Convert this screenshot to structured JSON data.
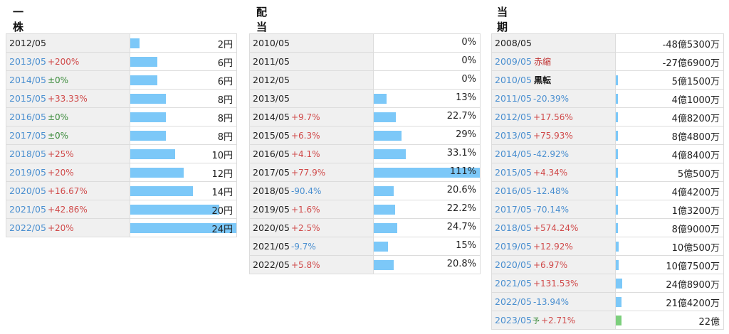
{
  "panels": [
    {
      "title": "一株配当",
      "rows": [
        {
          "year": "2012/05",
          "change": "",
          "dir": "",
          "link": false,
          "value": "2円",
          "bar": 2
        },
        {
          "year": "2013/05",
          "change": "+200%",
          "dir": "up",
          "link": true,
          "value": "6円",
          "bar": 6
        },
        {
          "year": "2014/05",
          "change": "±0%",
          "dir": "flat",
          "link": true,
          "value": "6円",
          "bar": 6
        },
        {
          "year": "2015/05",
          "change": "+33.33%",
          "dir": "up",
          "link": true,
          "value": "8円",
          "bar": 8
        },
        {
          "year": "2016/05",
          "change": "±0%",
          "dir": "flat",
          "link": true,
          "value": "8円",
          "bar": 8
        },
        {
          "year": "2017/05",
          "change": "±0%",
          "dir": "flat",
          "link": true,
          "value": "8円",
          "bar": 8
        },
        {
          "year": "2018/05",
          "change": "+25%",
          "dir": "up",
          "link": true,
          "value": "10円",
          "bar": 10
        },
        {
          "year": "2019/05",
          "change": "+20%",
          "dir": "up",
          "link": true,
          "value": "12円",
          "bar": 12
        },
        {
          "year": "2020/05",
          "change": "+16.67%",
          "dir": "up",
          "link": true,
          "value": "14円",
          "bar": 14
        },
        {
          "year": "2021/05",
          "change": "+42.86%",
          "dir": "up",
          "link": true,
          "value": "20円",
          "bar": 20
        },
        {
          "year": "2022/05",
          "change": "+20%",
          "dir": "up",
          "link": true,
          "value": "24円",
          "bar": 24
        }
      ],
      "bar_max": 24
    },
    {
      "title": "配当性向",
      "rows": [
        {
          "year": "2010/05",
          "change": "",
          "dir": "",
          "link": false,
          "value": "0%",
          "bar": 0
        },
        {
          "year": "2011/05",
          "change": "",
          "dir": "",
          "link": false,
          "value": "0%",
          "bar": 0
        },
        {
          "year": "2012/05",
          "change": "",
          "dir": "",
          "link": false,
          "value": "0%",
          "bar": 0
        },
        {
          "year": "2013/05",
          "change": "",
          "dir": "",
          "link": false,
          "value": "13%",
          "bar": 13
        },
        {
          "year": "2014/05",
          "change": "+9.7%",
          "dir": "up",
          "link": false,
          "value": "22.7%",
          "bar": 22.7
        },
        {
          "year": "2015/05",
          "change": "+6.3%",
          "dir": "up",
          "link": false,
          "value": "29%",
          "bar": 29
        },
        {
          "year": "2016/05",
          "change": "+4.1%",
          "dir": "up",
          "link": false,
          "value": "33.1%",
          "bar": 33.1
        },
        {
          "year": "2017/05",
          "change": "+77.9%",
          "dir": "up",
          "link": false,
          "value": "111%",
          "bar": 111
        },
        {
          "year": "2018/05",
          "change": "-90.4%",
          "dir": "down",
          "link": false,
          "value": "20.6%",
          "bar": 20.6
        },
        {
          "year": "2019/05",
          "change": "+1.6%",
          "dir": "up",
          "link": false,
          "value": "22.2%",
          "bar": 22.2
        },
        {
          "year": "2020/05",
          "change": "+2.5%",
          "dir": "up",
          "link": false,
          "value": "24.7%",
          "bar": 24.7
        },
        {
          "year": "2021/05",
          "change": "-9.7%",
          "dir": "down",
          "link": false,
          "value": "15%",
          "bar": 15
        },
        {
          "year": "2022/05",
          "change": "+5.8%",
          "dir": "up",
          "link": false,
          "value": "20.8%",
          "bar": 20.8
        }
      ],
      "bar_max": 111
    },
    {
      "title": "当期純利益",
      "rows": [
        {
          "year": "2008/05",
          "change": "",
          "dir": "",
          "link": false,
          "value": "-48億5300万",
          "bar": 0
        },
        {
          "year": "2009/05",
          "tag": "赤縮",
          "tagStyle": "red",
          "change": "",
          "dir": "",
          "link": true,
          "value": "-27億6900万",
          "bar": 0
        },
        {
          "year": "2010/05",
          "tag": "黒転",
          "tagStyle": "black",
          "change": "",
          "dir": "",
          "link": true,
          "value": "5億1500万",
          "bar": 5.15
        },
        {
          "year": "2011/05",
          "change": "-20.39%",
          "dir": "down",
          "link": true,
          "value": "4億1000万",
          "bar": 4.1
        },
        {
          "year": "2012/05",
          "change": "+17.56%",
          "dir": "up",
          "link": true,
          "value": "4億8200万",
          "bar": 4.82
        },
        {
          "year": "2013/05",
          "change": "+75.93%",
          "dir": "up",
          "link": true,
          "value": "8億4800万",
          "bar": 8.48
        },
        {
          "year": "2014/05",
          "change": "-42.92%",
          "dir": "down",
          "link": true,
          "value": "4億8400万",
          "bar": 4.84
        },
        {
          "year": "2015/05",
          "change": "+4.34%",
          "dir": "up",
          "link": true,
          "value": "5億500万",
          "bar": 5.05
        },
        {
          "year": "2016/05",
          "change": "-12.48%",
          "dir": "down",
          "link": true,
          "value": "4億4200万",
          "bar": 4.42
        },
        {
          "year": "2017/05",
          "change": "-70.14%",
          "dir": "down",
          "link": true,
          "value": "1億3200万",
          "bar": 1.32
        },
        {
          "year": "2018/05",
          "change": "+574.24%",
          "dir": "up",
          "link": true,
          "value": "8億9000万",
          "bar": 8.9
        },
        {
          "year": "2019/05",
          "change": "+12.92%",
          "dir": "up",
          "link": true,
          "value": "10億500万",
          "bar": 10.05
        },
        {
          "year": "2020/05",
          "change": "+6.97%",
          "dir": "up",
          "link": true,
          "value": "10億7500万",
          "bar": 10.75
        },
        {
          "year": "2021/05",
          "change": "+131.53%",
          "dir": "up",
          "link": true,
          "value": "24億8900万",
          "bar": 24.89
        },
        {
          "year": "2022/05",
          "change": "-13.94%",
          "dir": "down",
          "link": true,
          "value": "21億4200万",
          "bar": 21.42
        },
        {
          "year": "2023/05",
          "tag": "予",
          "tagStyle": "green",
          "change": "+2.71%",
          "dir": "up",
          "link": true,
          "value": "22億",
          "bar": 22,
          "forecast": true
        }
      ],
      "bar_max": 400
    }
  ],
  "colors": {
    "bar": "#7cc8f8",
    "forecast_bar": "#7ccf7c",
    "up": "#d04a4a",
    "down": "#4a8fd0",
    "flat": "#3a8a3a"
  }
}
